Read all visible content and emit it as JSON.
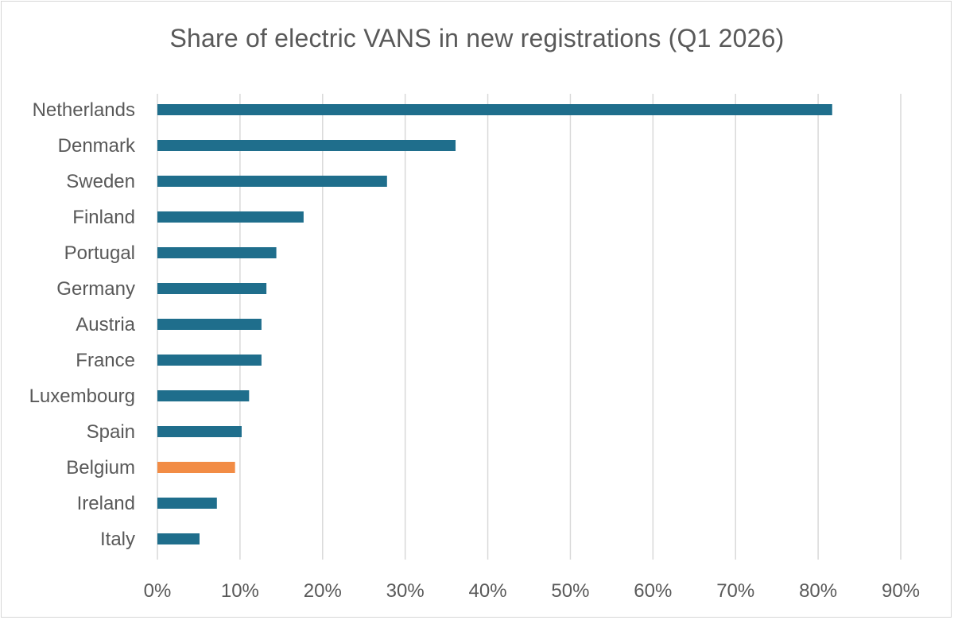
{
  "chart_data": {
    "type": "bar",
    "orientation": "horizontal",
    "title": "Share of electric VANS in new registrations (Q1 2026)",
    "categories": [
      "Netherlands",
      "Denmark",
      "Sweden",
      "Finland",
      "Portugal",
      "Germany",
      "Austria",
      "France",
      "Luxembourg",
      "Spain",
      "Belgium",
      "Ireland",
      "Italy"
    ],
    "values": [
      81.7,
      36.1,
      27.8,
      17.7,
      14.4,
      13.2,
      12.6,
      12.6,
      11.1,
      10.2,
      9.4,
      7.2,
      5.1
    ],
    "highlight_category": "Belgium",
    "xlim": [
      0,
      90
    ],
    "xticks": [
      "0%",
      "10%",
      "20%",
      "30%",
      "40%",
      "50%",
      "60%",
      "70%",
      "80%",
      "90%"
    ],
    "grid": true,
    "colors": {
      "bar": "#1f6e8c",
      "highlight": "#f28c45",
      "grid": "#d9d9d9",
      "text": "#595959"
    }
  }
}
